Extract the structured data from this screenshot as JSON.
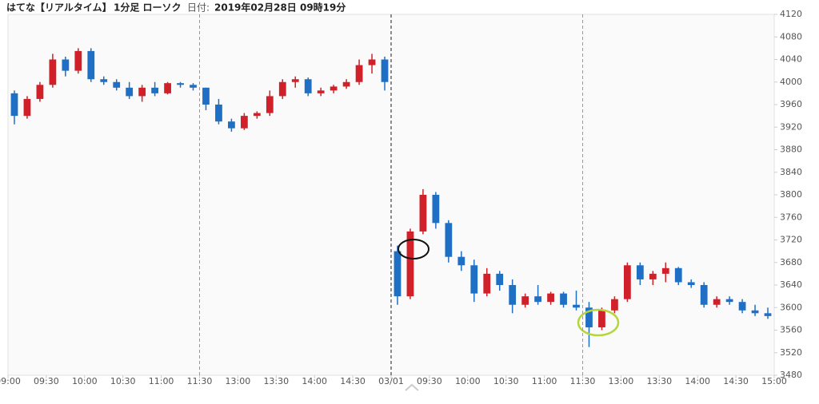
{
  "chart_data": {
    "type": "candlestick",
    "title": "はてな【リアルタイム】",
    "subtitle": "1分足 ローソク",
    "date_label": "日付:",
    "date": "2019年02月28日 09時19分",
    "up_color": "#d0202a",
    "down_color": "#1f6fc5",
    "x": [
      0,
      10,
      20,
      30,
      40,
      50,
      60,
      70,
      80,
      90,
      100,
      110,
      120,
      130,
      140,
      150,
      160,
      170,
      180,
      190,
      200,
      210,
      220,
      230,
      240,
      250,
      260,
      270,
      280,
      290,
      300,
      310,
      320,
      330,
      340,
      350,
      360,
      370,
      380,
      390,
      400,
      410,
      420,
      430,
      440,
      450,
      460,
      470,
      480,
      490,
      500,
      510,
      520,
      530,
      540,
      550,
      560,
      570,
      580,
      590
    ],
    "open": [
      3980,
      3940,
      3970,
      3995,
      4040,
      4020,
      4055,
      4005,
      4000,
      3990,
      3975,
      3990,
      3980,
      3998,
      3995,
      3990,
      3960,
      3930,
      3918,
      3940,
      3945,
      3975,
      4000,
      4005,
      3980,
      3985,
      3992,
      4000,
      4030,
      4040,
      3700,
      3620,
      3735,
      3800,
      3750,
      3690,
      3675,
      3625,
      3660,
      3640,
      3605,
      3620,
      3610,
      3625,
      3605,
      3600,
      3565,
      3595,
      3615,
      3675,
      3650,
      3660,
      3670,
      3645,
      3640,
      3605,
      3615,
      3610,
      3595,
      3590
    ],
    "high": [
      3985,
      3975,
      4000,
      4050,
      4045,
      4060,
      4060,
      4010,
      4005,
      4000,
      3995,
      4000,
      4000,
      4000,
      3998,
      3990,
      3970,
      3935,
      3945,
      3948,
      3985,
      4005,
      4010,
      4008,
      3990,
      3995,
      4005,
      4040,
      4050,
      4045,
      3710,
      3740,
      3810,
      3805,
      3755,
      3700,
      3685,
      3670,
      3665,
      3650,
      3625,
      3640,
      3628,
      3628,
      3630,
      3610,
      3600,
      3620,
      3680,
      3680,
      3665,
      3680,
      3672,
      3650,
      3645,
      3620,
      3620,
      3615,
      3605,
      3600
    ],
    "low": [
      3925,
      3935,
      3965,
      3990,
      4010,
      4015,
      4000,
      3995,
      3985,
      3970,
      3965,
      3975,
      3978,
      3990,
      3985,
      3950,
      3925,
      3912,
      3915,
      3935,
      3940,
      3970,
      3990,
      3975,
      3975,
      3980,
      3988,
      3995,
      4015,
      3985,
      3605,
      3615,
      3730,
      3740,
      3680,
      3665,
      3610,
      3620,
      3630,
      3590,
      3600,
      3605,
      3605,
      3600,
      3595,
      3530,
      3560,
      3590,
      3610,
      3640,
      3640,
      3645,
      3640,
      3635,
      3600,
      3600,
      3605,
      3590,
      3585,
      3580
    ],
    "close": [
      3940,
      3970,
      3995,
      4040,
      4020,
      4055,
      4005,
      4000,
      3990,
      3975,
      3990,
      3980,
      3998,
      3995,
      3990,
      3960,
      3930,
      3918,
      3940,
      3945,
      3975,
      4000,
      4005,
      3980,
      3985,
      3992,
      4000,
      4030,
      4040,
      4000,
      3620,
      3735,
      3800,
      3750,
      3690,
      3675,
      3625,
      3660,
      3640,
      3605,
      3620,
      3610,
      3625,
      3605,
      3600,
      3565,
      3595,
      3615,
      3675,
      3650,
      3660,
      3670,
      3645,
      3640,
      3605,
      3615,
      3610,
      3595,
      3590,
      3585
    ],
    "xlim": [
      0,
      600
    ],
    "xticks": [
      {
        "value": 0,
        "label": "09:00"
      },
      {
        "value": 30,
        "label": "09:30"
      },
      {
        "value": 60,
        "label": "10:00"
      },
      {
        "value": 90,
        "label": "10:30"
      },
      {
        "value": 120,
        "label": "11:00"
      },
      {
        "value": 150,
        "label": "11:30"
      },
      {
        "value": 180,
        "label": "13:00"
      },
      {
        "value": 210,
        "label": "13:30"
      },
      {
        "value": 240,
        "label": "14:00"
      },
      {
        "value": 270,
        "label": "14:30"
      },
      {
        "value": 300,
        "label": "03/01"
      },
      {
        "value": 330,
        "label": "09:30"
      },
      {
        "value": 360,
        "label": "10:00"
      },
      {
        "value": 390,
        "label": "10:30"
      },
      {
        "value": 420,
        "label": "11:00"
      },
      {
        "value": 450,
        "label": "11:30"
      },
      {
        "value": 480,
        "label": "13:00"
      },
      {
        "value": 510,
        "label": "13:30"
      },
      {
        "value": 540,
        "label": "14:00"
      },
      {
        "value": 570,
        "label": "14:30"
      },
      {
        "value": 600,
        "label": "15:00"
      }
    ],
    "ylim": [
      3480,
      4120
    ],
    "yticks": [
      3480,
      3520,
      3560,
      3600,
      3640,
      3680,
      3720,
      3760,
      3800,
      3840,
      3880,
      3920,
      3960,
      4000,
      4040,
      4080,
      4120
    ]
  }
}
